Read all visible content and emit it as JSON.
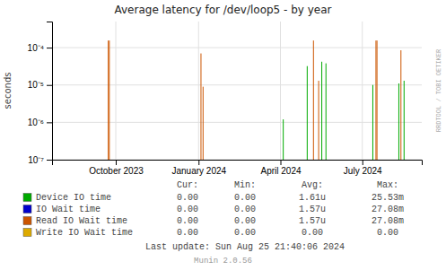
{
  "chart_data": {
    "type": "stem",
    "title": "Average latency for /dev/loop5 - by year",
    "y_label": "seconds",
    "log": "y",
    "grid": true,
    "legend": "bottom",
    "xlim": [
      1690000000,
      1725500000
    ],
    "xticks": [
      {
        "value": 1696118400,
        "label": "October 2023"
      },
      {
        "value": 1704067200,
        "label": "January 2024"
      },
      {
        "value": 1711929600,
        "label": "April 2024"
      },
      {
        "value": 1719792000,
        "label": "July 2024"
      }
    ],
    "ylim": [
      1e-07,
      0.0005
    ],
    "yticks": [
      {
        "value": 1e-07,
        "label": "10⁻⁷"
      },
      {
        "value": 1e-06,
        "label": "10⁻⁶"
      },
      {
        "value": 1e-05,
        "label": "10⁻⁵"
      },
      {
        "value": 0.0001,
        "label": "10⁻⁴"
      }
    ],
    "series": [
      {
        "name": "Device IO time",
        "color": "#00aa00",
        "x": [
          1712200000,
          1714500000,
          1715900000,
          1716300000,
          1720800000,
          1723300000,
          1723800000
        ],
        "values": [
          1.2e-06,
          3.2e-05,
          4.2e-05,
          3.8e-05,
          1e-05,
          1.1e-05,
          1.3e-05
        ]
      },
      {
        "name": "IO Wait time",
        "color": "#0000cc",
        "x": [],
        "values": []
      },
      {
        "name": "Read IO Wait time",
        "color": "#cc5500",
        "x": [
          1695400000,
          1695500000,
          1704300000,
          1704500000,
          1713000000,
          1715100000,
          1715600000,
          1715700000,
          1721100000,
          1721200000,
          1723500000,
          1724200000
        ],
        "values": [
          0.000155,
          0.000155,
          7e-05,
          9e-06,
          1e-07,
          0.000155,
          1.3e-05,
          1e-07,
          0.000155,
          0.000155,
          8.5e-05,
          1e-07
        ]
      },
      {
        "name": "Write IO Wait time",
        "color": "#ddaa00",
        "x": [
          1695600000,
          1704400000,
          1715200000,
          1721300000,
          1723600000
        ],
        "values": [
          1e-07,
          1e-07,
          1e-07,
          1e-07,
          1e-07
        ]
      }
    ],
    "legend_table": {
      "columns": [
        "Cur:",
        "Min:",
        "Avg:",
        "Max:"
      ],
      "rows": [
        [
          "0.00",
          "0.00",
          "1.61u",
          "25.53m"
        ],
        [
          "0.00",
          "0.00",
          "1.57u",
          "27.08m"
        ],
        [
          "0.00",
          "0.00",
          "1.57u",
          "27.08m"
        ],
        [
          "0.00",
          "0.00",
          "0.00",
          "0.00"
        ]
      ]
    },
    "annotations": [
      "Last update: Sun Aug 25 21:40:06 2024",
      "Munin 2.0.56",
      "RRDTOOL / TOBI OETIKER"
    ]
  }
}
